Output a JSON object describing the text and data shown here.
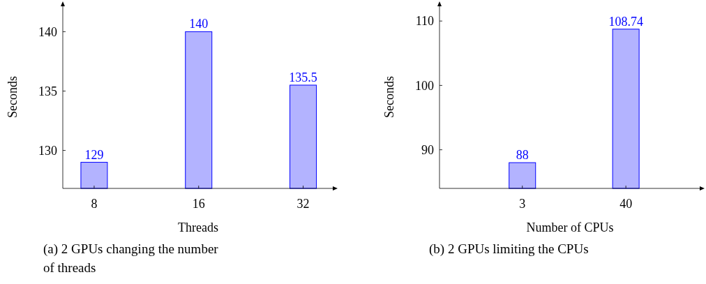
{
  "chart_data": [
    {
      "type": "bar",
      "xlabel": "Threads",
      "ylabel": "Seconds",
      "categories": [
        "8",
        "16",
        "32"
      ],
      "values": [
        129,
        140,
        135.5
      ],
      "color": "#b3b3ff",
      "ylim": [
        126.8,
        142.2
      ],
      "yticks": [
        130,
        135,
        140
      ],
      "data_labels": true,
      "grid": false,
      "annotations": [
        "(a) 2 GPUs changing the number of threads"
      ]
    },
    {
      "type": "bar",
      "xlabel": "Number of CPUs",
      "ylabel": "Seconds",
      "categories": [
        "3",
        "40"
      ],
      "values": [
        88,
        108.74
      ],
      "color": "#b3b3ff",
      "ylim": [
        84,
        112.4
      ],
      "yticks": [
        90,
        100,
        110
      ],
      "data_labels": true,
      "grid": false,
      "annotations": [
        "(b) 2 GPUs limiting the CPUs"
      ]
    }
  ]
}
